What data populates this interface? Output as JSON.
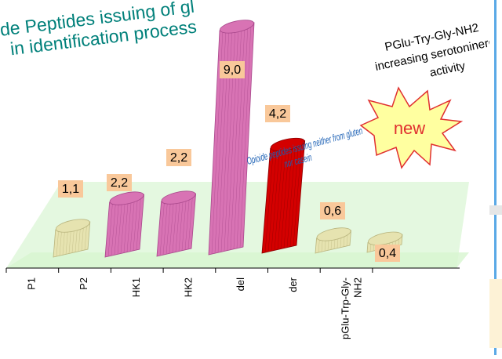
{
  "chart_data": {
    "type": "bar",
    "title": "de Peptides  issuing of gl",
    "title_line2": "in identification process",
    "categories": [
      "P1",
      "P2",
      "HK1",
      "HK2",
      "del",
      "der",
      "pGlu-Trp-Gly-NH2"
    ],
    "category_label_lines": [
      [
        "P1"
      ],
      [
        "P2"
      ],
      [
        "HK1"
      ],
      [
        "HK2"
      ],
      [
        "del"
      ],
      [
        "der"
      ],
      [
        "pGlu-Trp-Gly-",
        "NH2"
      ]
    ],
    "values": [
      1.1,
      2.2,
      2.2,
      9.0,
      4.2,
      0.6,
      0.4
    ],
    "value_labels": [
      "1,1",
      "2,2",
      "2,2",
      "9,0",
      "4,2",
      "0,6",
      "0,4"
    ],
    "bar_colors": [
      "#e6e3b0",
      "#d873b4",
      "#d873b4",
      "#d873b4",
      "#d40000",
      "#e6e3b0",
      "#e6e3b0"
    ],
    "ylim": [
      0,
      9.5
    ],
    "annotation_red": "Opioide peptides issuing neither from gluten nor casein",
    "annotation_red_line1": "Opioide peptides issuing neither from gluten",
    "annotation_red_line2": "nor casein",
    "annotation_right": [
      "PGlu-Try-Gly-NH2",
      "increasing serotoninergic",
      "activity"
    ],
    "badge": "new",
    "colors": {
      "title": "#00807a",
      "floor": "#d7f5d0",
      "wall": "#e4f8e0",
      "label_bg": "#f9c89a",
      "badge_fill": "#ffffa0",
      "badge_stroke": "#e03030",
      "badge_text": "#e03030",
      "note_text": "#1a5fb4"
    }
  }
}
